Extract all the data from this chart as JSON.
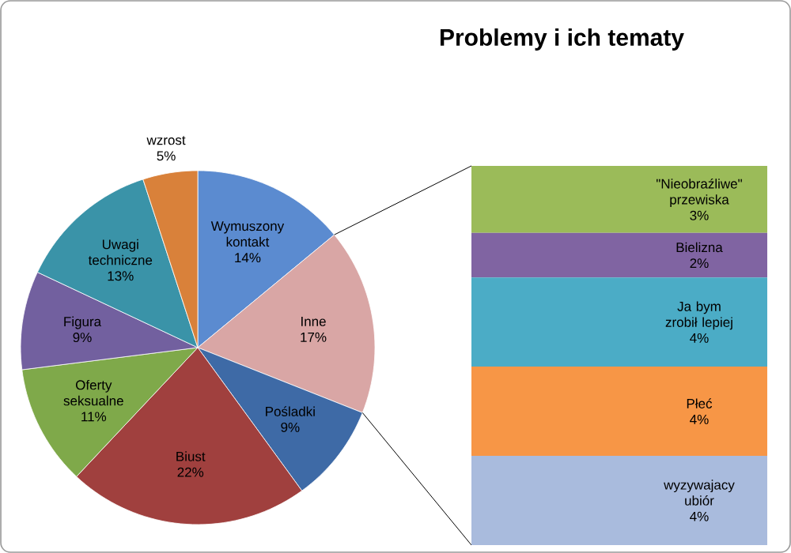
{
  "chart_data": [
    {
      "type": "pie",
      "categories": [
        "Wymuszony kontakt",
        "Inne",
        "Pośladki",
        "Biust",
        "Oferty seksualne",
        "Figura",
        "Uwagi techniczne",
        "wzrost"
      ],
      "values": [
        14,
        17,
        9,
        22,
        11,
        9,
        13,
        5
      ],
      "value_labels": [
        "14%",
        "17%",
        "9%",
        "22%",
        "11%",
        "9%",
        "13%",
        "5%"
      ],
      "colors": [
        "#5b8bd0",
        "#d9a6a5",
        "#3e6aa6",
        "#a0403e",
        "#7fa94a",
        "#72609f",
        "#3a93a8",
        "#d9813a"
      ]
    },
    {
      "type": "bar",
      "title": "Problemy i ich tematy",
      "stacked": true,
      "categories": [
        null
      ],
      "series": [
        {
          "name": "wyzywajacy ubiór",
          "color": "#a9bbdd",
          "values": [
            4
          ],
          "value_labels": [
            "4%"
          ]
        },
        {
          "name": "Płeć",
          "color": "#f79646",
          "values": [
            4
          ],
          "value_labels": [
            "4%"
          ]
        },
        {
          "name": "Ja bym zrobił lepiej",
          "color": "#4bacc6",
          "values": [
            4
          ],
          "value_labels": [
            "4%"
          ]
        },
        {
          "name": "Bielizna",
          "color": "#8064a2",
          "values": [
            2
          ],
          "value_labels": [
            "2%"
          ]
        },
        {
          "name": "\"Nieobraźliwe\" przewiska",
          "color": "#9bbb59",
          "values": [
            3
          ],
          "value_labels": [
            "3%"
          ]
        }
      ]
    }
  ]
}
